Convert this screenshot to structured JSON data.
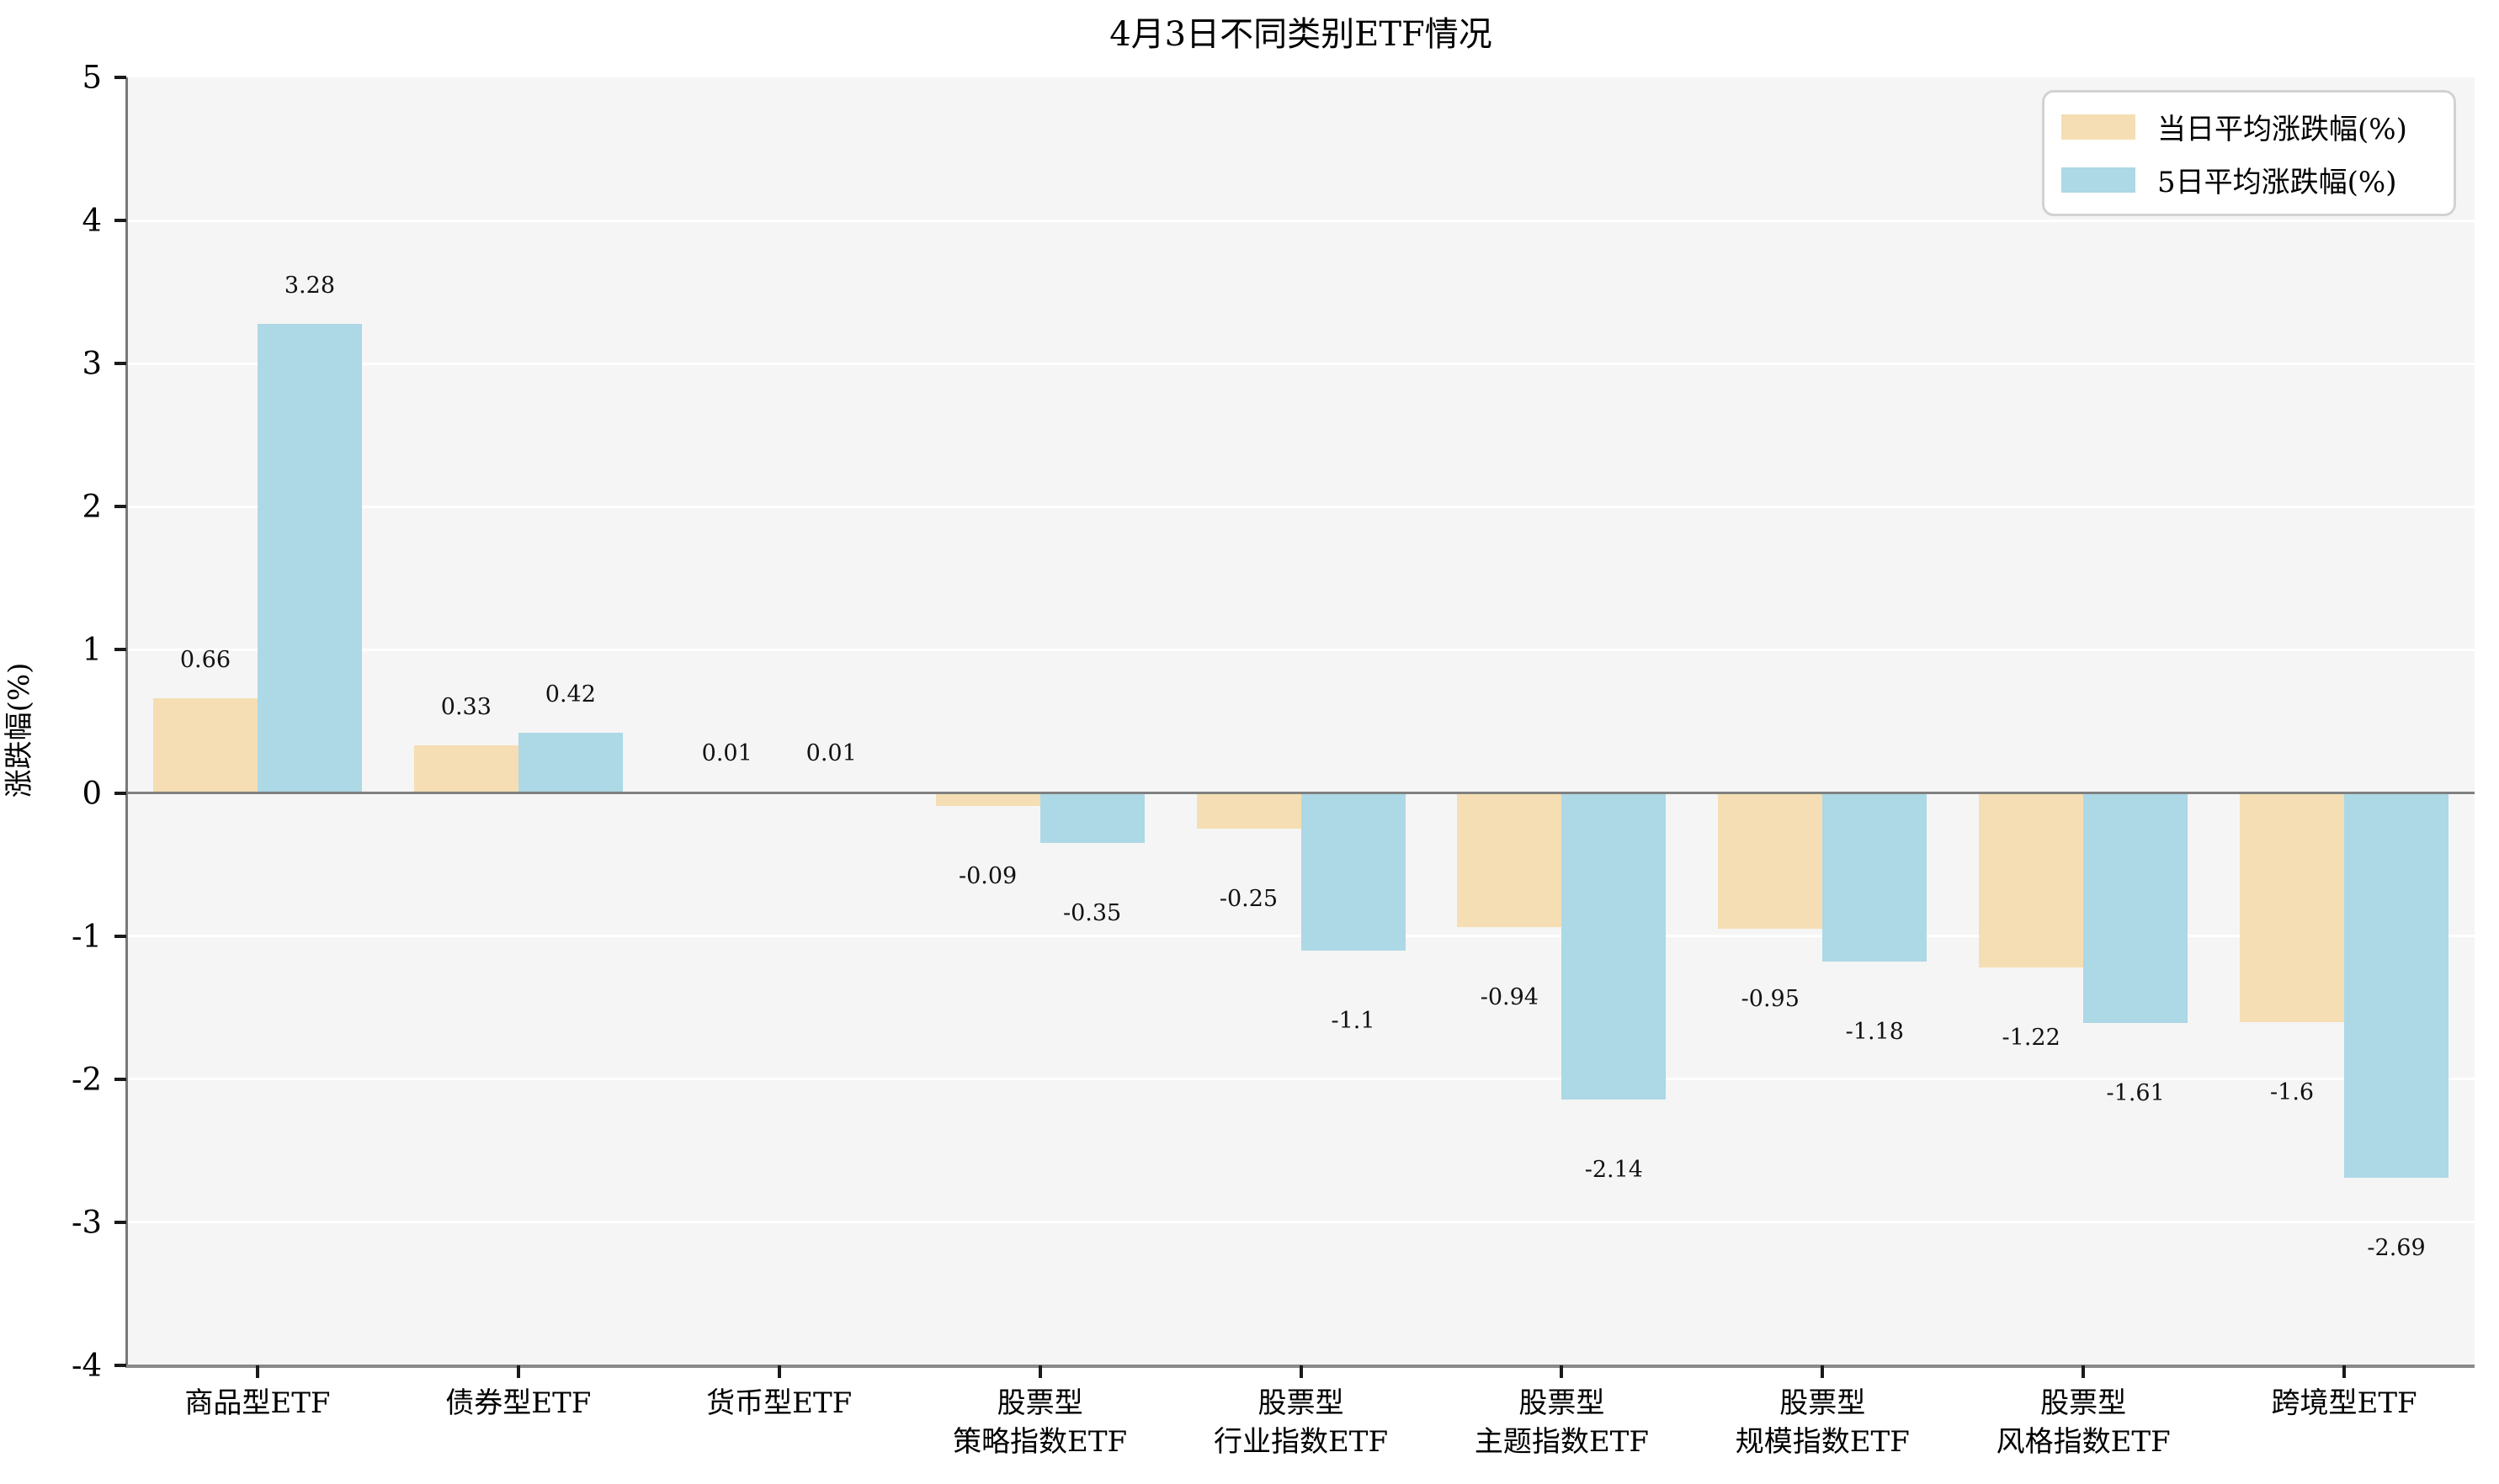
{
  "chart_data": {
    "type": "bar",
    "title": "4月3日不同类别ETF情况",
    "ylabel": "涨跌幅(%)",
    "xlabel": "",
    "ylim": [
      -4,
      5
    ],
    "yticks": [
      5,
      4,
      3,
      2,
      1,
      0,
      -1,
      -2,
      -3,
      -4
    ],
    "grid": true,
    "legend_position": "upper right",
    "plot_bg_color": "#f5f5f5",
    "gridline_color": "#ffffff",
    "zero_line_color": "#808080",
    "categories": [
      [
        "商品型ETF"
      ],
      [
        "债券型ETF"
      ],
      [
        "货币型ETF"
      ],
      [
        "股票型",
        "策略指数ETF"
      ],
      [
        "股票型",
        "行业指数ETF"
      ],
      [
        "股票型",
        "主题指数ETF"
      ],
      [
        "股票型",
        "规模指数ETF"
      ],
      [
        "股票型",
        "风格指数ETF"
      ],
      [
        "跨境型ETF"
      ]
    ],
    "series": [
      {
        "name": "当日平均涨跌幅(%)",
        "color": "#f5deb3",
        "values": [
          0.66,
          0.33,
          0.01,
          -0.09,
          -0.25,
          -0.94,
          -0.95,
          -1.22,
          -1.6
        ]
      },
      {
        "name": "5日平均涨跌幅(%)",
        "color": "#add8e6",
        "values": [
          3.28,
          0.42,
          0.01,
          -0.35,
          -1.1,
          -2.14,
          -1.18,
          -1.61,
          -2.69
        ]
      }
    ]
  }
}
